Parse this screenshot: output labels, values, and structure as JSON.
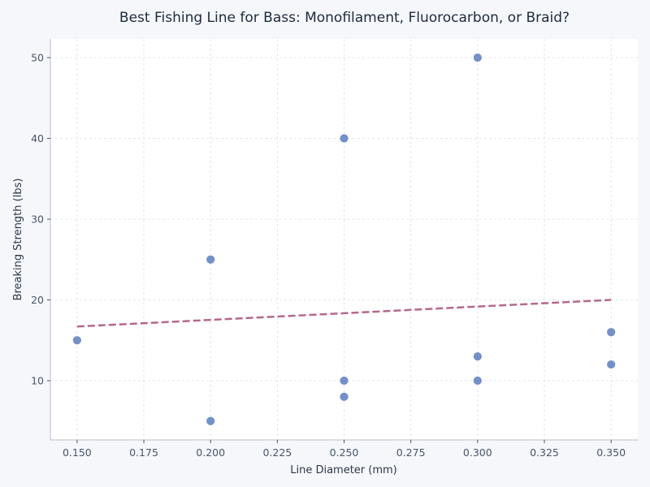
{
  "chart_data": {
    "type": "scatter",
    "title": "Best Fishing Line for Bass: Monofilament, Fluorocarbon, or Braid?",
    "xlabel": "Line Diameter (mm)",
    "ylabel": "Breaking Strength (lbs)",
    "xlim": [
      0.14,
      0.36
    ],
    "ylim": [
      2.66,
      52.31
    ],
    "x_ticks": [
      0.15,
      0.175,
      0.2,
      0.225,
      0.25,
      0.275,
      0.3,
      0.325,
      0.35
    ],
    "x_tick_labels": [
      "0.150",
      "0.175",
      "0.200",
      "0.225",
      "0.250",
      "0.275",
      "0.300",
      "0.325",
      "0.350"
    ],
    "y_ticks": [
      10,
      20,
      30,
      40,
      50
    ],
    "y_tick_labels": [
      "10",
      "20",
      "30",
      "40",
      "50"
    ],
    "grid": true,
    "legend": null,
    "series": [
      {
        "name": "Fishing lines",
        "type": "scatter",
        "color": "#7390c8",
        "points": [
          {
            "x": 0.15,
            "y": 15
          },
          {
            "x": 0.2,
            "y": 25
          },
          {
            "x": 0.2,
            "y": 5
          },
          {
            "x": 0.25,
            "y": 40
          },
          {
            "x": 0.25,
            "y": 10
          },
          {
            "x": 0.25,
            "y": 8
          },
          {
            "x": 0.3,
            "y": 50
          },
          {
            "x": 0.3,
            "y": 13
          },
          {
            "x": 0.3,
            "y": 10
          },
          {
            "x": 0.35,
            "y": 16
          },
          {
            "x": 0.35,
            "y": 12
          }
        ]
      },
      {
        "name": "Trend line",
        "type": "line",
        "style": "dashed",
        "color": "#b5688c",
        "points": [
          {
            "x": 0.15,
            "y": 16.7
          },
          {
            "x": 0.35,
            "y": 20.0
          }
        ]
      }
    ]
  }
}
